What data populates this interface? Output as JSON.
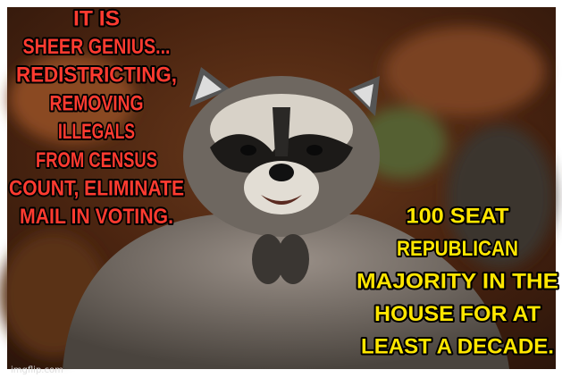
{
  "left_caption": {
    "lines": [
      "IT IS",
      "SHEER GENIUS...",
      "REDISTRICTING,",
      "REMOVING",
      "ILLEGALS",
      "FROM CENSUS",
      "COUNT, ELIMINATE",
      "MAIL IN VOTING."
    ]
  },
  "right_caption": {
    "lines": [
      "100 SEAT",
      "REPUBLICAN",
      "MAJORITY IN THE",
      "HOUSE FOR AT",
      "LEAST A DECADE."
    ]
  },
  "watermark": "imgflip.com"
}
